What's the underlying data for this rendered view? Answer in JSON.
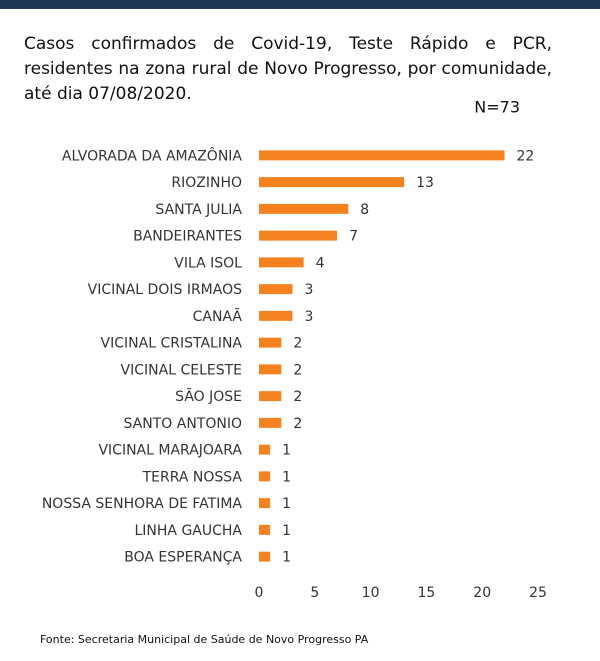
{
  "chart_data": {
    "type": "bar",
    "orientation": "horizontal",
    "title": "Casos confirmados de Covid-19, Teste Rápido e PCR, residentes na zona rural de Novo Progresso, por comunidade, até dia 07/08/2020.",
    "annotation": "N=73",
    "source": "Fonte: Secretaria Municipal de Saúde de Novo Progresso PA",
    "categories": [
      "ALVORADA DA AMAZÔNIA",
      "RIOZINHO",
      "SANTA JULIA",
      "BANDEIRANTES",
      "VILA ISOL",
      "VICINAL DOIS IRMAOS",
      "CANAÃ",
      "VICINAL CRISTALINA",
      "VICINAL CELESTE",
      "SÃO JOSE",
      "SANTO ANTONIO",
      "VICINAL MARAJOARA",
      "TERRA NOSSA",
      "NOSSA SENHORA DE FATIMA",
      "LINHA GAUCHA",
      "BOA ESPERANÇA"
    ],
    "values": [
      22,
      13,
      8,
      7,
      4,
      3,
      3,
      2,
      2,
      2,
      2,
      1,
      1,
      1,
      1,
      1
    ],
    "color": "#f5821f",
    "xlim": [
      0,
      25
    ],
    "xticks": [
      0,
      5,
      10,
      15,
      20,
      25
    ],
    "grid": false
  }
}
